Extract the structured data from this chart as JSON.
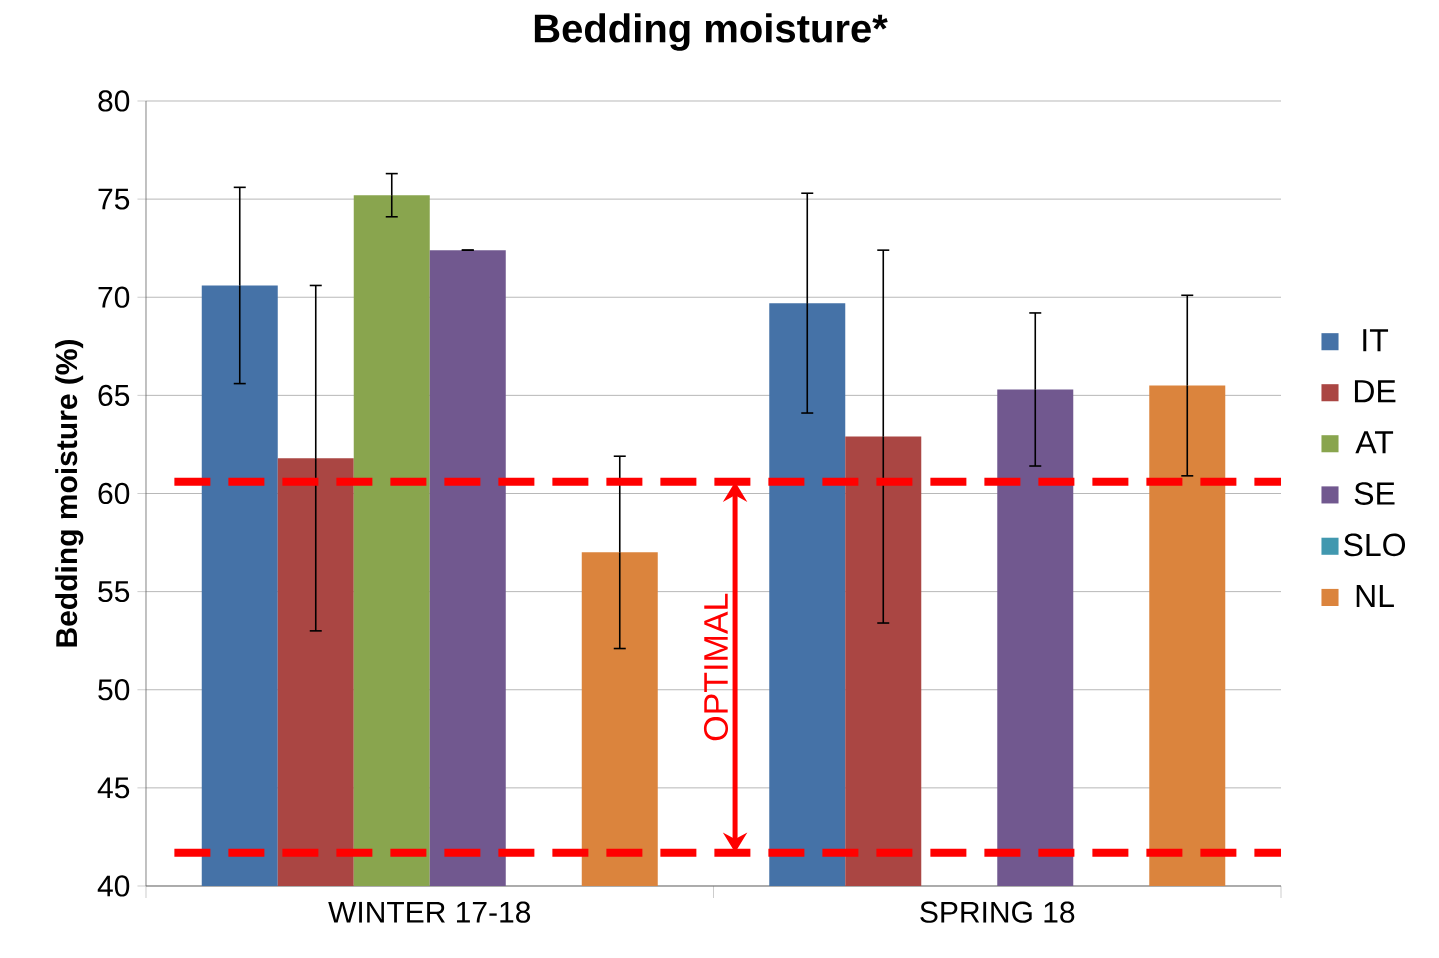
{
  "chart_data": {
    "type": "bar",
    "title": "Bedding moisture*",
    "ylabel": "Bedding moisture (%)",
    "categories": [
      "WINTER 17-18",
      "SPRING 18"
    ],
    "series": [
      {
        "name": "IT",
        "color": "#4572a7",
        "values": [
          70.6,
          69.7
        ],
        "errors": [
          5.0,
          5.6
        ]
      },
      {
        "name": "DE",
        "color": "#aa4643",
        "values": [
          61.8,
          62.9
        ],
        "errors": [
          8.8,
          9.5
        ]
      },
      {
        "name": "AT",
        "color": "#89a54e",
        "values": [
          75.2,
          null
        ],
        "errors": [
          1.1,
          null
        ]
      },
      {
        "name": "SE",
        "color": "#71588f",
        "values": [
          72.4,
          65.3
        ],
        "errors": [
          0,
          3.9
        ]
      },
      {
        "name": "SLO",
        "color": "#4198af",
        "values": [
          null,
          null
        ],
        "errors": [
          null,
          null
        ]
      },
      {
        "name": "NL",
        "color": "#db843d",
        "values": [
          57.0,
          65.5
        ],
        "errors": [
          4.9,
          4.6
        ]
      }
    ],
    "ylim": [
      40,
      80
    ],
    "yticks": [
      40,
      45,
      50,
      55,
      60,
      65,
      70,
      75,
      80
    ],
    "grid": "y",
    "legend": "right",
    "ref_lines": [
      {
        "axis": "y",
        "value": 60.6,
        "color": "#ff0000",
        "line_style": "dashed"
      },
      {
        "axis": "y",
        "value": 41.7,
        "color": "#ff0000",
        "line_style": "dashed"
      }
    ],
    "annotations": [
      "OPTIMAL"
    ]
  }
}
